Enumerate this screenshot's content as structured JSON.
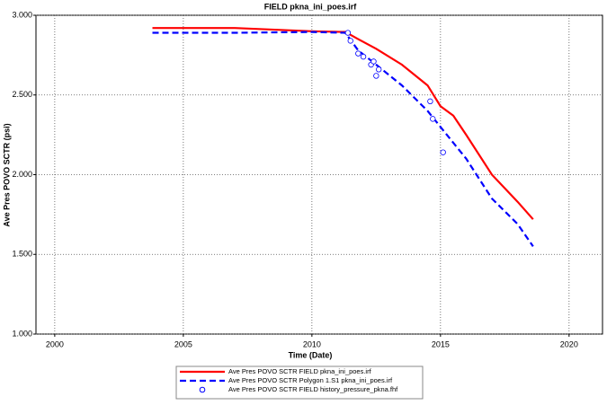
{
  "chart_data": {
    "type": "line",
    "title": "FIELD pkna_ini_poes.irf",
    "x_label": "Time (Date)",
    "y_label": "Ave Pres POVO SCTR (psi)",
    "xlim": [
      1999.27,
      2021.3
    ],
    "xticks": [
      2000,
      2005,
      2010,
      2015,
      2020
    ],
    "ylim": [
      1000,
      3000
    ],
    "yticks": [
      {
        "value": 1000,
        "label": "1.000"
      },
      {
        "value": 1500,
        "label": "1.500"
      },
      {
        "value": 2000,
        "label": "2.000"
      },
      {
        "value": 2500,
        "label": "2.500"
      },
      {
        "value": 3000,
        "label": "3.000"
      }
    ],
    "grid": true,
    "legend": "bottom",
    "series": [
      {
        "name": "Ave Pres POVO SCTR FIELD pkna_ini_poes.irf",
        "color": "#ff0000",
        "style": "solid",
        "x": [
          2003.8,
          2007,
          2010,
          2011.3,
          2011.8,
          2012.5,
          2013.5,
          2014.5,
          2015,
          2015.5,
          2016,
          2017,
          2018,
          2018.6
        ],
        "values": [
          2920,
          2920,
          2900,
          2895,
          2850,
          2790,
          2690,
          2560,
          2430,
          2370,
          2250,
          2000,
          1830,
          1720
        ]
      },
      {
        "name": "Ave Pres POVO SCTR Polygon 1.S1 pkna_ini_poes.irf",
        "color": "#0000ff",
        "style": "dashed",
        "x": [
          2003.8,
          2007,
          2010,
          2011.3,
          2011.8,
          2012.5,
          2013.5,
          2014.5,
          2015,
          2016,
          2017,
          2018,
          2018.6
        ],
        "values": [
          2890,
          2890,
          2895,
          2890,
          2780,
          2690,
          2560,
          2400,
          2300,
          2100,
          1850,
          1690,
          1550
        ]
      },
      {
        "name": "Ave Pres POVO SCTR FIELD history_pressure_pkna.fhf",
        "color": "#0000ff",
        "style": "markers",
        "x": [
          2011.4,
          2011.5,
          2011.8,
          2012.0,
          2012.3,
          2012.4,
          2012.5,
          2012.6,
          2014.6,
          2014.7,
          2015.1
        ],
        "values": [
          2890,
          2840,
          2760,
          2740,
          2690,
          2710,
          2620,
          2660,
          2460,
          2350,
          2140
        ]
      }
    ]
  }
}
